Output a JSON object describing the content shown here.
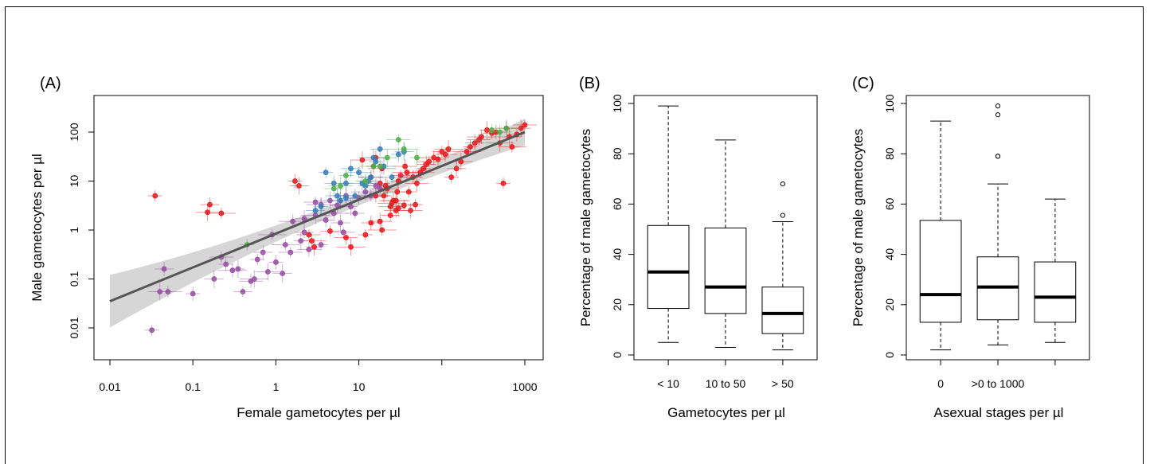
{
  "colors": {
    "red": "#e41a1c",
    "purple": "#984ea3",
    "blue": "#377eb8",
    "green": "#4daf4a",
    "fit": "#555555",
    "ci": "#c8c8c8"
  },
  "chart_data": [
    {
      "panel": "(A)",
      "type": "scatter",
      "xscale": "log",
      "yscale": "log",
      "xlabel": "Female gametocytes per µl",
      "ylabel": "Male gametocytes per µl",
      "xlim": [
        0.01,
        1000
      ],
      "ylim": [
        0.01,
        100
      ],
      "xticks": [
        "0.01",
        "0.1",
        "1",
        "10",
        "1000"
      ],
      "yticks": [
        "0.01",
        "0.1",
        "1",
        "10",
        "100"
      ],
      "grid": false,
      "fit_line": {
        "x": [
          0.01,
          1000
        ],
        "y": [
          0.035,
          100
        ]
      },
      "series": [
        {
          "color": "red",
          "points": [
            [
              0.035,
              5
            ],
            [
              0.16,
              3.3
            ],
            [
              0.15,
              2.3
            ],
            [
              0.22,
              2.2
            ],
            [
              1.7,
              10
            ],
            [
              1.9,
              8
            ],
            [
              2.5,
              0.8
            ],
            [
              2.7,
              0.6
            ],
            [
              2.9,
              0.45
            ],
            [
              4.5,
              0.95
            ],
            [
              7,
              0.7
            ],
            [
              8,
              0.45
            ],
            [
              12,
              0.8
            ],
            [
              14,
              1.4
            ],
            [
              18,
              1.5
            ],
            [
              19,
              1
            ],
            [
              20,
              5
            ],
            [
              22,
              7
            ],
            [
              24,
              3
            ],
            [
              28,
              4
            ],
            [
              30,
              10
            ],
            [
              32,
              13
            ],
            [
              36,
              20
            ],
            [
              38,
              15
            ],
            [
              40,
              6
            ],
            [
              45,
              12
            ],
            [
              50,
              9
            ],
            [
              55,
              15
            ],
            [
              60,
              18
            ],
            [
              65,
              22
            ],
            [
              70,
              25
            ],
            [
              80,
              30
            ],
            [
              90,
              28
            ],
            [
              100,
              40
            ],
            [
              110,
              35
            ],
            [
              120,
              45
            ],
            [
              130,
              12
            ],
            [
              150,
              18
            ],
            [
              170,
              25
            ],
            [
              200,
              40
            ],
            [
              220,
              50
            ],
            [
              250,
              60
            ],
            [
              280,
              70
            ],
            [
              300,
              80
            ],
            [
              350,
              110
            ],
            [
              400,
              95
            ],
            [
              450,
              100
            ],
            [
              500,
              60
            ],
            [
              550,
              9
            ],
            [
              600,
              120
            ],
            [
              650,
              80
            ],
            [
              700,
              50
            ],
            [
              800,
              90
            ],
            [
              900,
              120
            ],
            [
              1000,
              140
            ],
            [
              25,
              3.5
            ],
            [
              30,
              2.8
            ],
            [
              35,
              3.2
            ],
            [
              42,
              2.5
            ],
            [
              26,
              4
            ],
            [
              48,
              3.3
            ],
            [
              16,
              30
            ],
            [
              11,
              27
            ],
            [
              19,
              18
            ],
            [
              15,
              20
            ],
            [
              18,
              9
            ],
            [
              14,
              12
            ],
            [
              16,
              5
            ],
            [
              21,
              8
            ],
            [
              24,
              2
            ],
            [
              28,
              2.5
            ],
            [
              29,
              6
            ]
          ]
        },
        {
          "color": "purple",
          "points": [
            [
              0.032,
              0.009
            ],
            [
              0.045,
              0.16
            ],
            [
              0.04,
              0.055
            ],
            [
              0.05,
              0.055
            ],
            [
              0.1,
              0.05
            ],
            [
              0.18,
              0.1
            ],
            [
              0.22,
              0.28
            ],
            [
              0.3,
              0.15
            ],
            [
              0.35,
              0.16
            ],
            [
              0.4,
              0.055
            ],
            [
              0.5,
              0.09
            ],
            [
              0.55,
              0.1
            ],
            [
              0.6,
              0.25
            ],
            [
              0.7,
              0.35
            ],
            [
              0.8,
              0.14
            ],
            [
              0.9,
              0.8
            ],
            [
              1,
              0.22
            ],
            [
              1.2,
              0.13
            ],
            [
              1.5,
              0.35
            ],
            [
              1.6,
              1.5
            ],
            [
              2,
              0.6
            ],
            [
              2.2,
              0.9
            ],
            [
              2.5,
              0.4
            ],
            [
              3,
              2
            ],
            [
              3.5,
              0.5
            ],
            [
              4,
              1.6
            ],
            [
              4.5,
              4
            ],
            [
              5,
              2.2
            ],
            [
              5.5,
              3.2
            ],
            [
              6,
              1.4
            ],
            [
              6.5,
              0.9
            ],
            [
              7,
              5
            ],
            [
              8,
              3
            ],
            [
              9,
              2.2
            ],
            [
              10,
              4.5
            ],
            [
              12,
              6
            ],
            [
              14,
              5
            ],
            [
              16,
              8
            ],
            [
              18,
              7
            ],
            [
              1.3,
              0.5
            ],
            [
              0.25,
              0.2
            ],
            [
              2.2,
              1.7
            ],
            [
              3,
              3.7
            ],
            [
              3.5,
              3.3
            ],
            [
              6,
              4
            ]
          ]
        },
        {
          "color": "blue",
          "points": [
            [
              4,
              15
            ],
            [
              5,
              9
            ],
            [
              5.5,
              5
            ],
            [
              6,
              4
            ],
            [
              7,
              9
            ],
            [
              8,
              18
            ],
            [
              10,
              15
            ],
            [
              11,
              9
            ],
            [
              12,
              8
            ],
            [
              13,
              10
            ],
            [
              14,
              12
            ],
            [
              15,
              30
            ],
            [
              16,
              25
            ],
            [
              18,
              45
            ],
            [
              20,
              20
            ],
            [
              25,
              12
            ],
            [
              30,
              35
            ],
            [
              35,
              40
            ],
            [
              7,
              4.5
            ],
            [
              9,
              5
            ],
            [
              3.5,
              3
            ],
            [
              3,
              2.5
            ]
          ]
        },
        {
          "color": "green",
          "points": [
            [
              0.45,
              0.5
            ],
            [
              5,
              7
            ],
            [
              6,
              8
            ],
            [
              15,
              20
            ],
            [
              18,
              20
            ],
            [
              22,
              30
            ],
            [
              30,
              70
            ],
            [
              35,
              45
            ],
            [
              50,
              30
            ],
            [
              400,
              110
            ],
            [
              500,
              100
            ],
            [
              600,
              120
            ],
            [
              7,
              13
            ],
            [
              12,
              10
            ]
          ]
        }
      ]
    },
    {
      "panel": "(B)",
      "type": "boxplot",
      "xlabel": "Gametocytes per µl",
      "ylabel": "Percentage of male gametocytes",
      "ylim": [
        0,
        100
      ],
      "yticks": [
        "0",
        "20",
        "40",
        "60",
        "80",
        "100"
      ],
      "categories": [
        "< 10",
        "10 to 50",
        "> 50"
      ],
      "boxes": [
        {
          "whisker_low": 5,
          "q1": 18.5,
          "median": 33,
          "q3": 51.5,
          "whisker_high": 99,
          "outliers": []
        },
        {
          "whisker_low": 3,
          "q1": 16.5,
          "median": 27,
          "q3": 50.5,
          "whisker_high": 85.5,
          "outliers": []
        },
        {
          "whisker_low": 2,
          "q1": 8.5,
          "median": 16.5,
          "q3": 27,
          "whisker_high": 53,
          "outliers": [
            55.5,
            68
          ]
        }
      ]
    },
    {
      "panel": "(C)",
      "type": "boxplot",
      "xlabel": "Asexual stages per µl",
      "ylabel": "Percentage of male gametocytes",
      "ylim": [
        0,
        100
      ],
      "yticks": [
        "0",
        "20",
        "40",
        "60",
        "80",
        "100"
      ],
      "categories": [
        "0",
        ">0 to 1000",
        ""
      ],
      "boxes": [
        {
          "whisker_low": 2,
          "q1": 13,
          "median": 24,
          "q3": 53.5,
          "whisker_high": 93,
          "outliers": []
        },
        {
          "whisker_low": 4,
          "q1": 14,
          "median": 27,
          "q3": 39,
          "whisker_high": 68,
          "outliers": [
            79,
            79,
            95.5,
            99
          ]
        },
        {
          "whisker_low": 5,
          "q1": 13,
          "median": 23,
          "q3": 37,
          "whisker_high": 62,
          "outliers": []
        }
      ]
    }
  ]
}
